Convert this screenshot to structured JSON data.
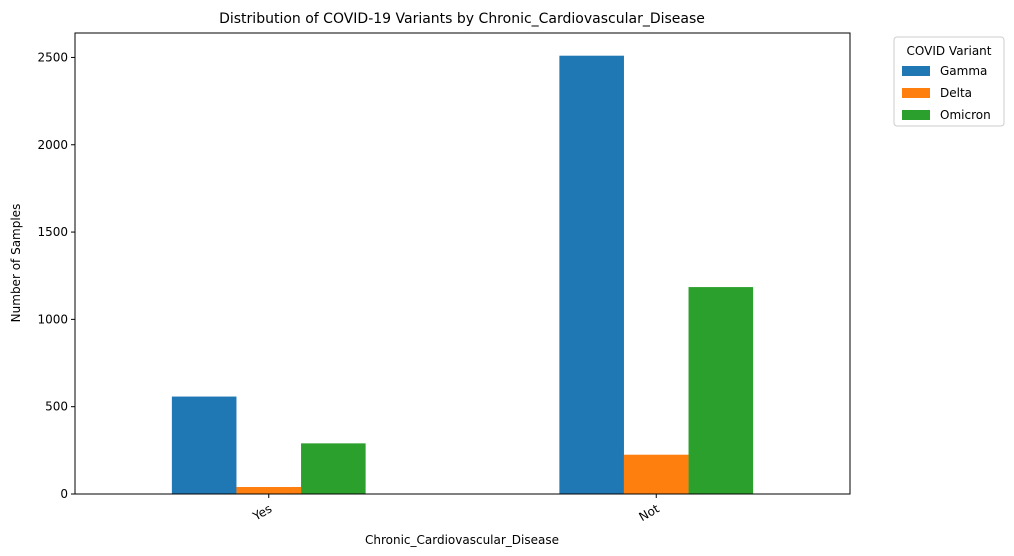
{
  "chart_data": {
    "type": "bar",
    "title": "Distribution of COVID-19 Variants by Chronic_Cardiovascular_Disease",
    "xlabel": "Chronic_Cardiovascular_Disease",
    "ylabel": "Number of Samples",
    "categories": [
      "Yes",
      "Not"
    ],
    "series": [
      {
        "name": "Gamma",
        "color": "#1f77b4",
        "values": [
          558,
          2510
        ]
      },
      {
        "name": "Delta",
        "color": "#ff7f0e",
        "values": [
          40,
          225
        ]
      },
      {
        "name": "Omicron",
        "color": "#2ca02c",
        "values": [
          290,
          1185
        ]
      }
    ],
    "ylim": [
      0,
      2640
    ],
    "yticks": [
      0,
      500,
      1000,
      1500,
      2000,
      2500
    ],
    "legend": {
      "title": "COVID Variant",
      "placement": "outside-top-right"
    },
    "grid": false
  }
}
